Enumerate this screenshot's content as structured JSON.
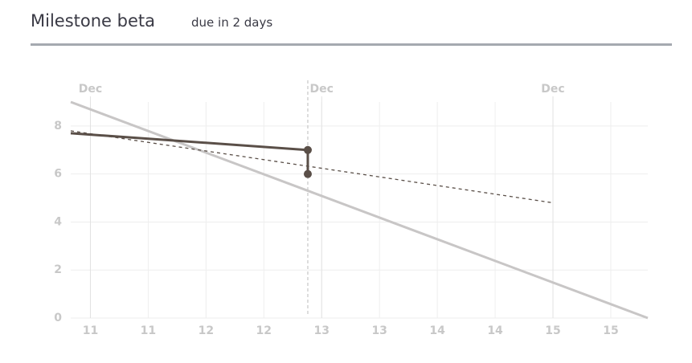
{
  "header": {
    "title": "Milestone beta",
    "due": "due in 2 days"
  },
  "chart_data": {
    "type": "line",
    "xlim": [
      10.83,
      15.82
    ],
    "ylim": [
      0,
      9
    ],
    "xticks": [
      {
        "value": 11,
        "label": "11"
      },
      {
        "value": 11.5,
        "label": "11"
      },
      {
        "value": 12,
        "label": "12"
      },
      {
        "value": 12.5,
        "label": "12"
      },
      {
        "value": 13,
        "label": "13"
      },
      {
        "value": 13.5,
        "label": "13"
      },
      {
        "value": 14,
        "label": "14"
      },
      {
        "value": 14.5,
        "label": "14"
      },
      {
        "value": 15,
        "label": "15"
      },
      {
        "value": 15.5,
        "label": "15"
      }
    ],
    "x2ticks": [
      {
        "value": 11,
        "label": "Dec"
      },
      {
        "value": 13,
        "label": "Dec"
      },
      {
        "value": 15,
        "label": "Dec"
      }
    ],
    "yticks": [
      0,
      2,
      4,
      6,
      8
    ],
    "grid": true,
    "now": 12.88,
    "series": [
      {
        "color": "#c8c6c6",
        "style": "solid",
        "x": [
          10.83,
          15.82
        ],
        "values": [
          9,
          0
        ]
      },
      {
        "color": "#5a4f48",
        "style": "dashed",
        "x": [
          10.83,
          15.0
        ],
        "values": [
          7.8,
          4.8
        ]
      },
      {
        "color": "#5a4f48",
        "style": "solid",
        "markers": true,
        "x": [
          10.83,
          12.88,
          12.88
        ],
        "values": [
          7.7,
          7.0,
          6.0
        ]
      }
    ]
  }
}
